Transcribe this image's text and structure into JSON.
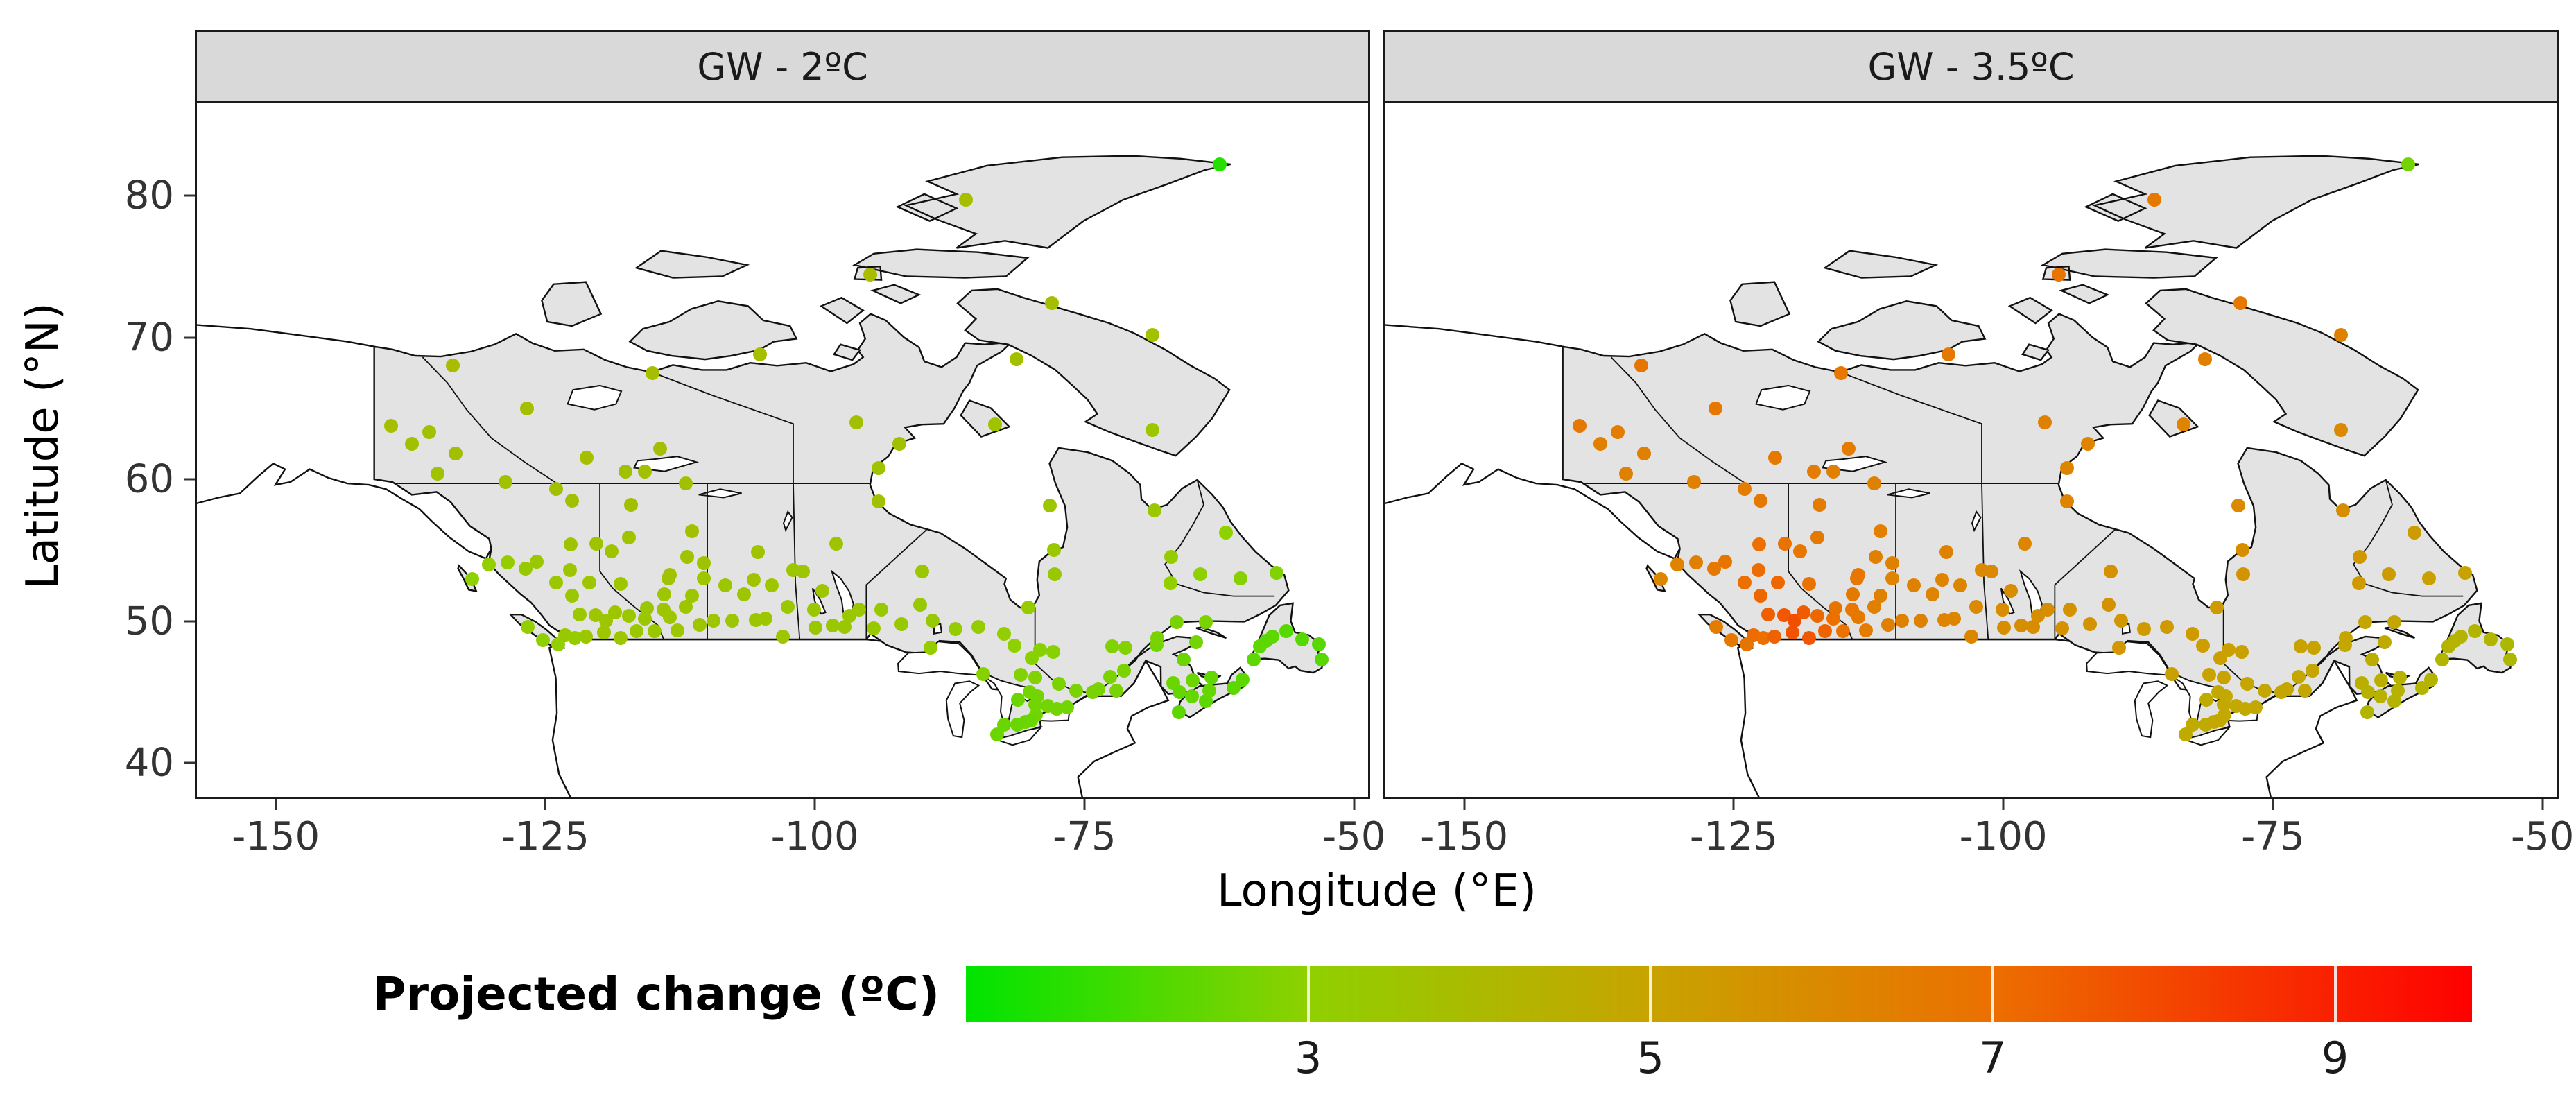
{
  "figure": {
    "panels": [
      {
        "label": "GW - 2ºC"
      },
      {
        "label": "GW - 3.5ºC"
      }
    ],
    "x_axis": {
      "label": "Longitude (°E)",
      "ticks": [
        -150,
        -125,
        -100,
        -75,
        -50
      ]
    },
    "y_axis": {
      "label": "Latitude (°N)",
      "ticks": [
        40,
        50,
        60,
        70,
        80
      ]
    },
    "legend": {
      "title": "Projected change (ºC)",
      "ticks": [
        3,
        5,
        7,
        9
      ],
      "range": [
        1,
        9.8
      ],
      "stops": [
        {
          "v": 1,
          "color": "#00e400"
        },
        {
          "v": 3,
          "color": "#8fd000"
        },
        {
          "v": 5,
          "color": "#c8a300"
        },
        {
          "v": 7,
          "color": "#ec6f00"
        },
        {
          "v": 9.8,
          "color": "#ff0000"
        }
      ]
    },
    "colors": {
      "strip_bg": "#d9d9d9",
      "panel_border": "#1a1a1a",
      "land": "#e3e3e3",
      "water": "#ffffff"
    }
  },
  "chart_data": {
    "type": "scatter",
    "title": "Projected temperature change at Canadian stations under two global-warming levels",
    "facets": [
      "GW - 2ºC",
      "GW - 3.5ºC"
    ],
    "xlabel": "Longitude (°E)",
    "ylabel": "Latitude (°N)",
    "xlim": [
      -157.5,
      -48.5
    ],
    "ylim": [
      37.9,
      86.8
    ],
    "xticks": [
      -150,
      -125,
      -100,
      -75,
      -50
    ],
    "yticks": [
      40,
      50,
      60,
      70,
      80
    ],
    "grid": false,
    "colorbar": {
      "title": "Projected change (ºC)",
      "ticks": [
        3,
        5,
        7,
        9
      ],
      "range": [
        1,
        9.8
      ],
      "position": "bottom"
    },
    "points_format": [
      "lon",
      "lat",
      "value_GW2C",
      "value_GW3.5C"
    ],
    "points": [
      [
        -123.2,
        49.3,
        3.3,
        7.1
      ],
      [
        -122.3,
        49.1,
        3.2,
        7.0
      ],
      [
        -121.3,
        49.2,
        3.4,
        7.3
      ],
      [
        -119.6,
        49.5,
        3.5,
        7.7
      ],
      [
        -118.1,
        49.1,
        3.5,
        7.6
      ],
      [
        -116.6,
        49.6,
        3.4,
        7.3
      ],
      [
        -114.9,
        49.6,
        3.4,
        6.9
      ],
      [
        -123.9,
        48.65,
        3.1,
        6.8
      ],
      [
        -125.3,
        48.95,
        3.0,
        6.6
      ],
      [
        -126.7,
        49.9,
        3.1,
        6.5
      ],
      [
        -120.4,
        50.7,
        3.5,
        7.6
      ],
      [
        -119.4,
        50.3,
        3.5,
        7.8
      ],
      [
        -121.9,
        50.75,
        3.4,
        7.4
      ],
      [
        -118.6,
        50.9,
        3.5,
        7.5
      ],
      [
        -117.3,
        50.65,
        3.4,
        7.2
      ],
      [
        -115.8,
        50.45,
        3.4,
        7.0
      ],
      [
        -122.6,
        52.1,
        3.4,
        7.2
      ],
      [
        -124.1,
        53.0,
        3.4,
        7.0
      ],
      [
        -122.75,
        53.9,
        3.5,
        7.1
      ],
      [
        -126.9,
        54.0,
        3.3,
        6.6
      ],
      [
        -128.6,
        54.45,
        3.2,
        6.4
      ],
      [
        -130.3,
        54.3,
        3.1,
        6.2
      ],
      [
        -121.0,
        53.0,
        3.5,
        7.2
      ],
      [
        -125.9,
        54.5,
        3.4,
        6.8
      ],
      [
        -120.3,
        55.75,
        3.6,
        6.9
      ],
      [
        -122.7,
        55.7,
        3.6,
        7.0
      ],
      [
        -122.6,
        58.8,
        3.7,
        6.6
      ],
      [
        -131.9,
        53.25,
        3.0,
        6.1
      ],
      [
        -124.1,
        59.6,
        3.7,
        6.5
      ],
      [
        -128.8,
        60.1,
        3.7,
        6.4
      ],
      [
        -135.1,
        60.7,
        3.6,
        6.3
      ],
      [
        -133.4,
        62.1,
        3.7,
        6.4
      ],
      [
        -135.9,
        63.6,
        3.7,
        6.5
      ],
      [
        -139.4,
        64.05,
        3.8,
        6.6
      ],
      [
        -137.5,
        62.8,
        3.7,
        6.4
      ],
      [
        -133.7,
        68.3,
        3.9,
        6.8
      ],
      [
        -126.8,
        65.3,
        3.8,
        6.7
      ],
      [
        -121.2,
        61.8,
        3.8,
        6.6
      ],
      [
        -117.6,
        60.85,
        3.7,
        6.5
      ],
      [
        -115.8,
        60.85,
        3.7,
        6.4
      ],
      [
        -112.0,
        60.0,
        3.7,
        6.3
      ],
      [
        -114.4,
        62.45,
        3.8,
        6.5
      ],
      [
        -110.7,
        50.05,
        3.5,
        6.4
      ],
      [
        -112.8,
        49.65,
        3.5,
        6.5
      ],
      [
        -113.5,
        50.55,
        3.5,
        6.6
      ],
      [
        -114.1,
        51.1,
        3.5,
        6.7
      ],
      [
        -114.0,
        52.2,
        3.5,
        6.6
      ],
      [
        -113.6,
        53.3,
        3.6,
        6.6
      ],
      [
        -113.5,
        53.55,
        3.6,
        6.7
      ],
      [
        -111.4,
        52.1,
        3.5,
        6.3
      ],
      [
        -110.3,
        53.3,
        3.5,
        6.2
      ],
      [
        -110.3,
        54.4,
        3.6,
        6.3
      ],
      [
        -111.4,
        56.65,
        3.7,
        6.4
      ],
      [
        -117.3,
        56.2,
        3.6,
        6.6
      ],
      [
        -118.9,
        55.2,
        3.6,
        6.7
      ],
      [
        -117.1,
        58.5,
        3.7,
        6.5
      ],
      [
        -115.6,
        51.2,
        3.4,
        6.8
      ],
      [
        -118.1,
        52.9,
        3.5,
        6.9
      ],
      [
        -112.0,
        51.3,
        3.5,
        6.4
      ],
      [
        -111.9,
        54.8,
        3.6,
        6.4
      ],
      [
        -103.0,
        49.2,
        3.5,
        6.1
      ],
      [
        -104.6,
        50.45,
        3.5,
        6.1
      ],
      [
        -105.5,
        50.35,
        3.5,
        6.2
      ],
      [
        -107.7,
        50.3,
        3.5,
        6.3
      ],
      [
        -106.6,
        52.2,
        3.5,
        6.2
      ],
      [
        -102.5,
        51.3,
        3.4,
        6.0
      ],
      [
        -105.7,
        53.2,
        3.6,
        6.2
      ],
      [
        -108.3,
        52.8,
        3.5,
        6.3
      ],
      [
        -105.3,
        55.15,
        3.6,
        6.3
      ],
      [
        -102.0,
        53.9,
        3.5,
        6.0
      ],
      [
        -109.4,
        50.3,
        3.5,
        6.3
      ],
      [
        -104.0,
        52.8,
        3.5,
        6.1
      ],
      [
        -97.2,
        49.9,
        3.4,
        5.9
      ],
      [
        -99.95,
        49.85,
        3.4,
        5.9
      ],
      [
        -100.05,
        51.1,
        3.4,
        5.9
      ],
      [
        -98.3,
        50.0,
        3.4,
        5.8
      ],
      [
        -96.8,
        50.65,
        3.4,
        5.8
      ],
      [
        -101.1,
        53.8,
        3.5,
        6.0
      ],
      [
        -98.0,
        55.75,
        3.6,
        6.1
      ],
      [
        -94.05,
        58.75,
        3.7,
        6.2
      ],
      [
        -95.9,
        51.1,
        3.4,
        5.8
      ],
      [
        -99.3,
        52.4,
        3.5,
        5.9
      ],
      [
        -94.5,
        49.8,
        3.3,
        5.7
      ],
      [
        -93.8,
        51.1,
        3.3,
        5.6
      ],
      [
        -91.9,
        50.1,
        3.3,
        5.6
      ],
      [
        -90.2,
        51.45,
        3.3,
        5.6
      ],
      [
        -89.2,
        48.4,
        3.2,
        5.5
      ],
      [
        -89.0,
        50.3,
        3.3,
        5.5
      ],
      [
        -86.9,
        49.75,
        3.2,
        5.4
      ],
      [
        -84.8,
        49.9,
        3.2,
        5.4
      ],
      [
        -82.4,
        49.4,
        3.1,
        5.3
      ],
      [
        -81.4,
        48.55,
        3.0,
        5.2
      ],
      [
        -80.1,
        51.27,
        3.2,
        5.3
      ],
      [
        -90.0,
        53.8,
        3.4,
        5.7
      ],
      [
        -83.0,
        42.3,
        2.5,
        4.7
      ],
      [
        -81.15,
        43.0,
        2.5,
        4.7
      ],
      [
        -82.4,
        43.0,
        2.5,
        4.7
      ],
      [
        -80.4,
        43.2,
        2.5,
        4.8
      ],
      [
        -79.4,
        43.68,
        2.6,
        4.8
      ],
      [
        -79.85,
        43.3,
        2.5,
        4.8
      ],
      [
        -78.3,
        44.3,
        2.6,
        4.8
      ],
      [
        -77.5,
        44.12,
        2.6,
        4.8
      ],
      [
        -76.5,
        44.23,
        2.6,
        4.8
      ],
      [
        -75.7,
        45.38,
        2.7,
        4.9
      ],
      [
        -77.3,
        45.88,
        2.7,
        4.9
      ],
      [
        -79.5,
        44.4,
        2.6,
        4.8
      ],
      [
        -81.1,
        44.75,
        2.5,
        4.7
      ],
      [
        -79.3,
        45.0,
        2.6,
        4.8
      ],
      [
        -79.45,
        46.3,
        2.8,
        5.0
      ],
      [
        -80.8,
        46.5,
        2.8,
        5.0
      ],
      [
        -84.3,
        46.55,
        2.9,
        5.1
      ],
      [
        -79.8,
        47.7,
        2.9,
        5.1
      ],
      [
        -80.0,
        45.3,
        2.6,
        4.8
      ],
      [
        -73.6,
        45.5,
        2.7,
        4.9
      ],
      [
        -72.5,
        46.35,
        2.7,
        4.9
      ],
      [
        -71.9,
        45.4,
        2.7,
        4.9
      ],
      [
        -71.2,
        46.8,
        2.7,
        4.9
      ],
      [
        -71.1,
        48.4,
        2.8,
        5.0
      ],
      [
        -72.3,
        48.5,
        2.8,
        5.0
      ],
      [
        -77.8,
        48.1,
        2.9,
        5.1
      ],
      [
        -79.0,
        48.25,
        2.9,
        5.1
      ],
      [
        -68.2,
        48.6,
        2.6,
        4.8
      ],
      [
        -68.15,
        49.1,
        2.7,
        4.9
      ],
      [
        -66.3,
        50.2,
        2.7,
        4.9
      ],
      [
        -64.5,
        48.8,
        2.6,
        4.7
      ],
      [
        -63.6,
        50.2,
        2.7,
        4.9
      ],
      [
        -74.1,
        45.3,
        2.7,
        4.9
      ],
      [
        -66.65,
        45.9,
        2.5,
        4.5
      ],
      [
        -64.8,
        46.1,
        2.5,
        4.5
      ],
      [
        -66.05,
        45.3,
        2.4,
        4.4
      ],
      [
        -65.65,
        47.6,
        2.5,
        4.6
      ],
      [
        -63.1,
        46.3,
        2.4,
        4.4
      ],
      [
        -63.6,
        44.65,
        2.3,
        4.3
      ],
      [
        -60.2,
        46.15,
        2.3,
        4.3
      ],
      [
        -66.1,
        43.85,
        2.3,
        4.2
      ],
      [
        -64.9,
        45.0,
        2.4,
        4.4
      ],
      [
        -63.3,
        45.4,
        2.4,
        4.4
      ],
      [
        -61.0,
        45.6,
        2.3,
        4.3
      ],
      [
        -52.8,
        47.6,
        2.2,
        4.1
      ],
      [
        -54.6,
        49.0,
        2.2,
        4.2
      ],
      [
        -57.4,
        49.2,
        2.3,
        4.3
      ],
      [
        -58.55,
        48.5,
        2.3,
        4.3
      ],
      [
        -58.0,
        48.9,
        2.3,
        4.3
      ],
      [
        -59.15,
        47.6,
        2.3,
        4.2
      ],
      [
        -53.1,
        48.65,
        2.2,
        4.1
      ],
      [
        -56.1,
        49.6,
        2.2,
        4.2
      ],
      [
        -60.4,
        53.3,
        2.9,
        5.1
      ],
      [
        -57.0,
        53.7,
        2.8,
        5.0
      ],
      [
        -61.7,
        56.55,
        3.0,
        5.3
      ],
      [
        -66.9,
        52.95,
        3.1,
        5.4
      ],
      [
        -64.1,
        53.6,
        3.0,
        5.3
      ],
      [
        -66.8,
        54.8,
        3.2,
        5.5
      ],
      [
        -68.4,
        58.1,
        3.4,
        5.8
      ],
      [
        -77.75,
        55.3,
        3.4,
        5.8
      ],
      [
        -78.1,
        58.45,
        3.5,
        6.0
      ],
      [
        -77.7,
        53.6,
        3.3,
        5.6
      ],
      [
        -68.55,
        63.75,
        3.5,
        6.0
      ],
      [
        -85.9,
        79.98,
        3.8,
        6.6
      ],
      [
        -94.85,
        74.7,
        3.9,
        6.8
      ],
      [
        -62.3,
        82.5,
        1.5,
        2.6
      ],
      [
        -96.1,
        64.3,
        3.7,
        6.3
      ],
      [
        -92.1,
        62.8,
        3.7,
        6.2
      ],
      [
        -94.05,
        61.1,
        3.6,
        6.1
      ],
      [
        -105.1,
        69.1,
        3.8,
        6.6
      ],
      [
        -115.1,
        67.8,
        3.8,
        6.7
      ],
      [
        -81.25,
        68.78,
        3.7,
        6.4
      ],
      [
        -83.2,
        64.15,
        3.6,
        6.2
      ],
      [
        -77.95,
        72.7,
        3.8,
        6.6
      ],
      [
        -68.55,
        70.45,
        3.6,
        6.3
      ]
    ]
  }
}
